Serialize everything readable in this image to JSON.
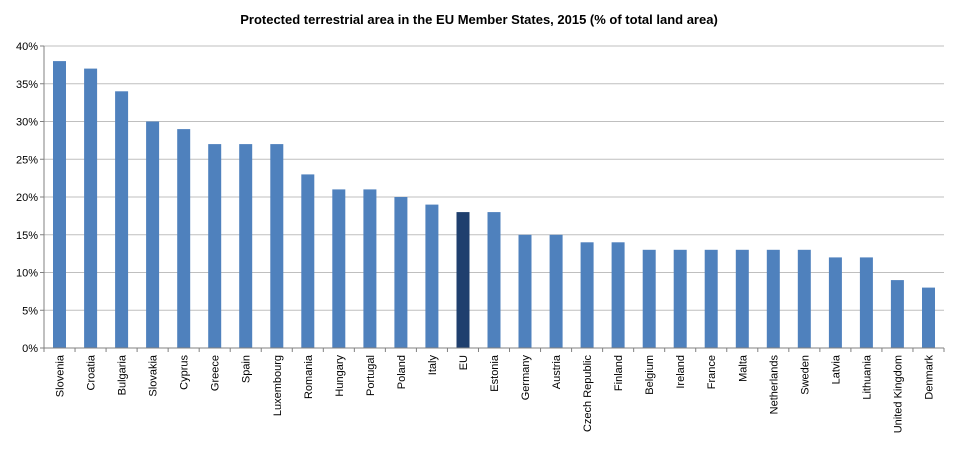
{
  "chart_data": {
    "type": "bar",
    "title": "Protected terrestrial area in the EU Member States, 2015  (% of total land area)",
    "xlabel": "",
    "ylabel": "",
    "ylim": [
      0,
      40
    ],
    "yticks": [
      "0%",
      "5%",
      "10%",
      "15%",
      "20%",
      "25%",
      "30%",
      "35%",
      "40%"
    ],
    "grid": true,
    "legend": "none",
    "categories": [
      "Slovenia",
      "Croatia",
      "Bulgaria",
      "Slovakia",
      "Cyprus",
      "Greece",
      "Spain",
      "Luxembourg",
      "Romania",
      "Hungary",
      "Portugal",
      "Poland",
      "Italy",
      "EU",
      "Estonia",
      "Germany",
      "Austria",
      "Czech Republic",
      "Finland",
      "Belgium",
      "Ireland",
      "France",
      "Malta",
      "Netherlands",
      "Sweden",
      "Latvia",
      "Lithuania",
      "United Kingdom",
      "Denmark"
    ],
    "values": [
      38,
      37,
      34,
      30,
      29,
      27,
      27,
      27,
      23,
      21,
      21,
      20,
      19,
      18,
      18,
      15,
      15,
      14,
      14,
      13,
      13,
      13,
      13,
      13,
      13,
      12,
      12,
      9,
      8
    ],
    "colors": {
      "bar": "#4f81bd",
      "highlight": "#1f3f6e",
      "highlight_category": "EU"
    }
  }
}
